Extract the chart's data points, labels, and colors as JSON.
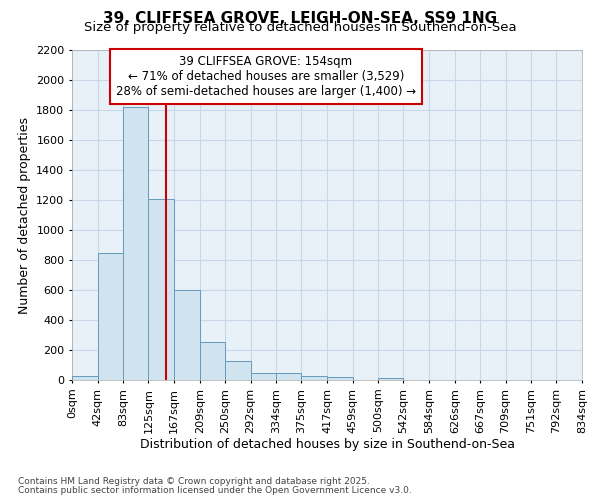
{
  "title1": "39, CLIFFSEA GROVE, LEIGH-ON-SEA, SS9 1NG",
  "title2": "Size of property relative to detached houses in Southend-on-Sea",
  "xlabel": "Distribution of detached houses by size in Southend-on-Sea",
  "ylabel": "Number of detached properties",
  "bin_edges": [
    0,
    42,
    83,
    125,
    167,
    209,
    250,
    292,
    334,
    375,
    417,
    459,
    500,
    542,
    584,
    626,
    667,
    709,
    751,
    792,
    834
  ],
  "bar_heights": [
    25,
    845,
    1820,
    1205,
    600,
    255,
    125,
    50,
    45,
    30,
    20,
    0,
    15,
    0,
    0,
    0,
    0,
    0,
    0,
    0
  ],
  "bar_color": "#d0e4f0",
  "bar_edge_color": "#6699bb",
  "red_line_x": 154,
  "ylim": [
    0,
    2200
  ],
  "yticks": [
    0,
    200,
    400,
    600,
    800,
    1000,
    1200,
    1400,
    1600,
    1800,
    2000,
    2200
  ],
  "annotation_title": "39 CLIFFSEA GROVE: 154sqm",
  "annotation_line1": "← 71% of detached houses are smaller (3,529)",
  "annotation_line2": "28% of semi-detached houses are larger (1,400) →",
  "annotation_box_facecolor": "#ffffff",
  "annotation_box_edgecolor": "#cc0000",
  "footnote1": "Contains HM Land Registry data © Crown copyright and database right 2025.",
  "footnote2": "Contains public sector information licensed under the Open Government Licence v3.0.",
  "bg_color": "#ffffff",
  "plot_bg_color": "#e8f0f8",
  "grid_color": "#c8d8e8",
  "title_fontsize": 11,
  "subtitle_fontsize": 9.5,
  "ylabel_fontsize": 9,
  "xlabel_fontsize": 9
}
